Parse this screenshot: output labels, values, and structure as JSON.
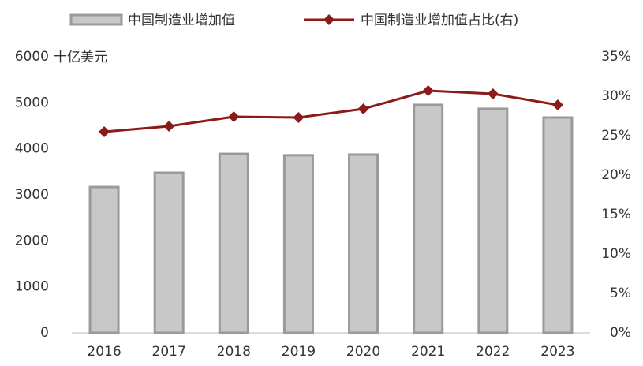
{
  "chart_data": {
    "type": "bar_line",
    "y_label": "十亿美元",
    "categories": [
      "2016",
      "2017",
      "2018",
      "2019",
      "2020",
      "2021",
      "2022",
      "2023"
    ],
    "series": [
      {
        "name": "中国制造业增加值",
        "type": "bar",
        "color": "#c8c8c8",
        "values": [
          3170,
          3480,
          3890,
          3860,
          3875,
          4955,
          4870,
          4680
        ]
      },
      {
        "name": "中国制造业增加值占比(右)",
        "type": "line",
        "axis": "y2",
        "color": "#8b1a1a",
        "values": [
          25.5,
          26.2,
          27.4,
          27.3,
          28.4,
          30.7,
          30.3,
          28.9
        ]
      }
    ],
    "ylim": [
      0,
      6000
    ],
    "yticks": [
      0,
      1000,
      2000,
      3000,
      4000,
      5000,
      6000
    ],
    "y2lim": [
      0,
      35
    ],
    "y2ticks": [
      {
        "value": 0,
        "label": "0%"
      },
      {
        "value": 5,
        "label": "5%"
      },
      {
        "value": 10,
        "label": "10%"
      },
      {
        "value": 15,
        "label": "15%"
      },
      {
        "value": 20,
        "label": "20%"
      },
      {
        "value": 25,
        "label": "25%"
      },
      {
        "value": 30,
        "label": "30%"
      },
      {
        "value": 35,
        "label": "35%"
      }
    ],
    "grid": false,
    "legend": "top"
  }
}
